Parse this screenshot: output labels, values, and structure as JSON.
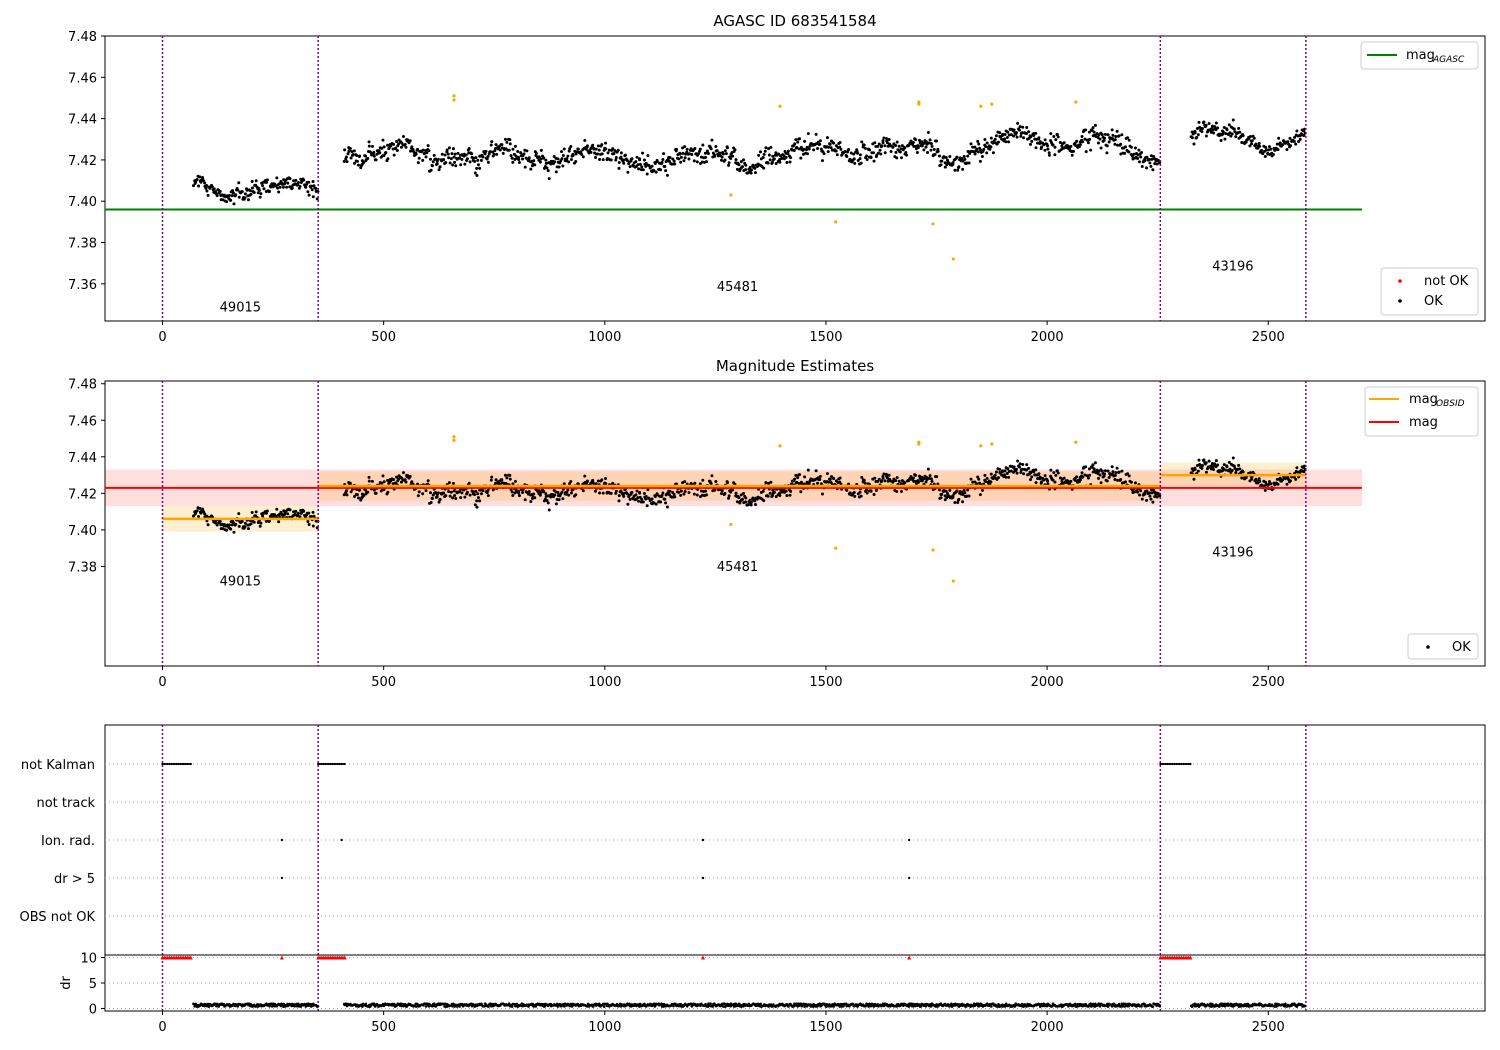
{
  "chart_data": [
    {
      "type": "scatter",
      "title": "AGASC ID 683541584",
      "ylim": [
        7.342,
        7.48
      ],
      "xlim": [
        -130,
        2990
      ],
      "xticks": [
        0,
        500,
        1000,
        1500,
        2000,
        2500
      ],
      "yticks": [
        7.36,
        7.38,
        7.4,
        7.42,
        7.44,
        7.46,
        7.48
      ],
      "obs_boundaries": [
        0,
        352,
        2256,
        2585
      ],
      "obs_labels": [
        {
          "text": "49015",
          "x": 176,
          "y": 7.3465
        },
        {
          "text": "45481",
          "x": 1300,
          "y": 7.3565
        },
        {
          "text": "43196",
          "x": 2420,
          "y": 7.3665
        }
      ],
      "mag_agasc": 7.396,
      "mag_agasc_range": [
        -130,
        2712
      ],
      "series_ok": [
        {
          "x_start": 70,
          "x_end": 352,
          "center": 7.405,
          "amp": 0.007,
          "noise": 0.005
        },
        {
          "x_start": 410,
          "x_end": 2256,
          "center": 7.424,
          "amp": 0.007,
          "noise": 0.006
        },
        {
          "x_start": 2325,
          "x_end": 2585,
          "center": 7.431,
          "amp": 0.006,
          "noise": 0.004
        }
      ],
      "not_ok_points": [
        {
          "x": 659,
          "y": 7.449
        },
        {
          "x": 659,
          "y": 7.451
        },
        {
          "x": 1285,
          "y": 7.403
        },
        {
          "x": 1396,
          "y": 7.446
        },
        {
          "x": 1522,
          "y": 7.39
        },
        {
          "x": 1710,
          "y": 7.447
        },
        {
          "x": 1710,
          "y": 7.448
        },
        {
          "x": 1742,
          "y": 7.389
        },
        {
          "x": 1788,
          "y": 7.372
        },
        {
          "x": 1850,
          "y": 7.446
        },
        {
          "x": 1875,
          "y": 7.447
        },
        {
          "x": 2065,
          "y": 7.448
        }
      ],
      "legend_top": [
        {
          "label": "mag",
          "sub": "AGASC",
          "color": "#008000",
          "kind": "line"
        }
      ],
      "legend_bottom": [
        {
          "label": "not OK",
          "color": "#ff0000",
          "kind": "dot"
        },
        {
          "label": "OK",
          "color": "#000000",
          "kind": "dot"
        }
      ]
    },
    {
      "type": "scatter",
      "title": "Magnitude Estimates",
      "ylim": [
        7.3255,
        7.4815
      ],
      "xlim": [
        -130,
        2990
      ],
      "xticks": [
        0,
        500,
        1000,
        1500,
        2000,
        2500
      ],
      "yticks": [
        7.38,
        7.4,
        7.42,
        7.44,
        7.46,
        7.48
      ],
      "obs_boundaries": [
        0,
        352,
        2256,
        2585
      ],
      "obs_labels": [
        {
          "text": "49015",
          "x": 176,
          "y": 7.3695
        },
        {
          "text": "45481",
          "x": 1300,
          "y": 7.3775
        },
        {
          "text": "43196",
          "x": 2420,
          "y": 7.3855
        }
      ],
      "mag": {
        "value": 7.423,
        "band": [
          7.413,
          7.433
        ],
        "range": [
          -130,
          2712
        ]
      },
      "mag_obsid": [
        {
          "x0": 0,
          "x1": 352,
          "value": 7.406,
          "band": [
            7.399,
            7.413
          ]
        },
        {
          "x0": 352,
          "x1": 2256,
          "value": 7.424,
          "band": [
            7.416,
            7.432
          ]
        },
        {
          "x0": 2256,
          "x1": 2585,
          "value": 7.43,
          "band": [
            7.424,
            7.437
          ]
        }
      ],
      "legend_top": [
        {
          "label": "mag",
          "sub": "OBSID",
          "color": "#ffa500",
          "kind": "line"
        },
        {
          "label": "mag",
          "sub": "",
          "color": "#ff0000",
          "kind": "line"
        }
      ],
      "legend_bottom": [
        {
          "label": "OK",
          "color": "#000000",
          "kind": "dot"
        }
      ]
    },
    {
      "type": "scatter",
      "title": "",
      "flag_rows": [
        "not Kalman",
        "not track",
        "Ion. rad.",
        "dr > 5",
        "OBS not OK"
      ],
      "flag_points": {
        "not Kalman": [
          [
            0,
            65
          ],
          [
            352,
            415
          ],
          [
            2256,
            2325
          ]
        ],
        "not track": [],
        "Ion. rad.": [
          270,
          405,
          1222,
          1688
        ],
        "dr > 5": [
          270,
          1222,
          1688
        ],
        "OBS not OK": []
      },
      "ylabel": "dr",
      "dr_yticks": [
        0,
        5,
        10
      ],
      "dr_ylim": [
        -0.5,
        10.5
      ],
      "dr_clipped": [
        [
          0,
          65
        ],
        [
          352,
          415
        ],
        [
          2256,
          2325
        ],
        [
          270,
          270
        ],
        [
          1222,
          1222
        ],
        [
          1688,
          1688
        ]
      ],
      "xticks": [
        0,
        500,
        1000,
        1500,
        2000,
        2500
      ],
      "xlim": [
        -130,
        2990
      ]
    }
  ]
}
